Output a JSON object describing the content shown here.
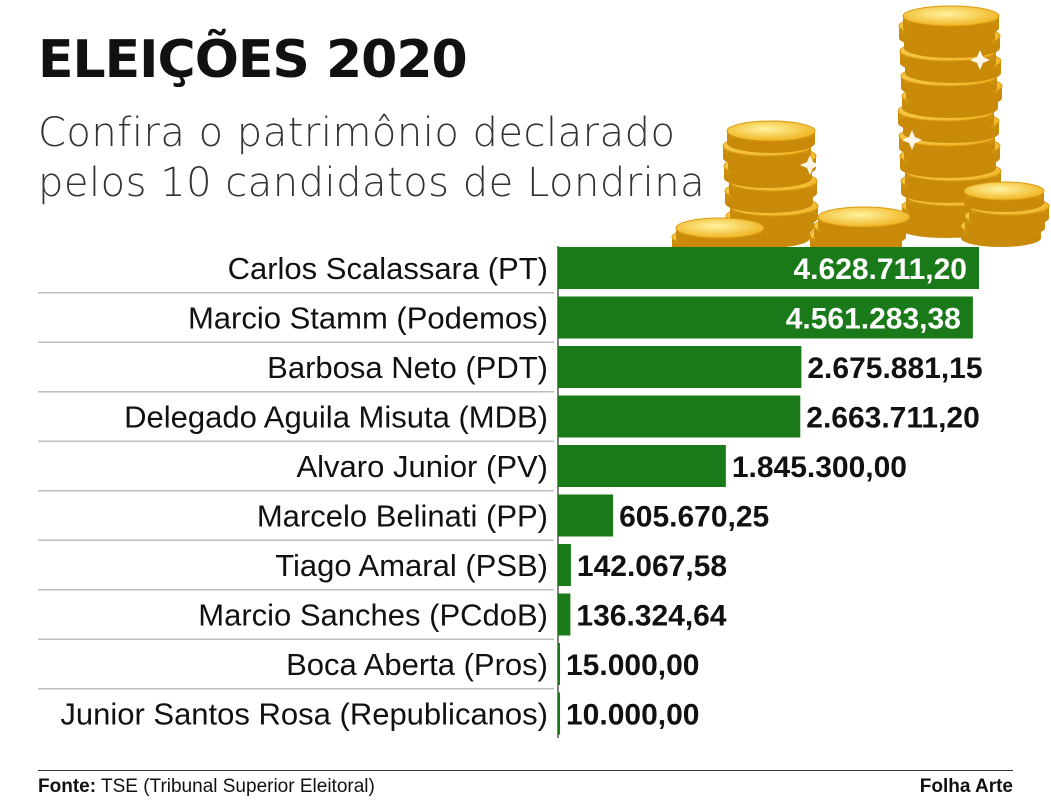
{
  "header": {
    "title": "ELEIÇÕES 2020",
    "subtitle_line1": "Confira o patrimônio declarado",
    "subtitle_line2": "pelos 10 candidatos de Londrina"
  },
  "footer": {
    "source_label": "Fonte:",
    "source_text": "TSE (Tribunal Superior Eleitoral)",
    "credit": "Folha Arte"
  },
  "colors": {
    "bar": "#1a7a1a",
    "value_inside": "#ffffff",
    "value_outside": "#111111",
    "separator": "#bdbdbd"
  },
  "chart_data": {
    "type": "bar",
    "orientation": "horizontal",
    "categories": [
      "Carlos Scalassara (PT)",
      "Marcio Stamm (Podemos)",
      "Barbosa Neto (PDT)",
      "Delegado Aguila Misuta (MDB)",
      "Alvaro Junior (PV)",
      "Marcelo Belinati (PP)",
      "Tiago Amaral (PSB)",
      "Marcio Sanches (PCdoB)",
      "Boca Aberta (Pros)",
      "Junior Santos Rosa (Republicanos)"
    ],
    "values": [
      4628711.2,
      4561283.38,
      2675881.15,
      2663711.2,
      1845300.0,
      605670.25,
      142067.58,
      136324.64,
      15000.0,
      10000.0
    ],
    "value_labels": [
      "4.628.711,20",
      "4.561.283,38",
      "2.675.881,15",
      "2.663.711,20",
      "1.845.300,00",
      "605.670,25",
      "142.067,58",
      "136.324,64",
      "15.000,00",
      "10.000,00"
    ],
    "xlim": [
      0,
      4628711.2
    ]
  }
}
